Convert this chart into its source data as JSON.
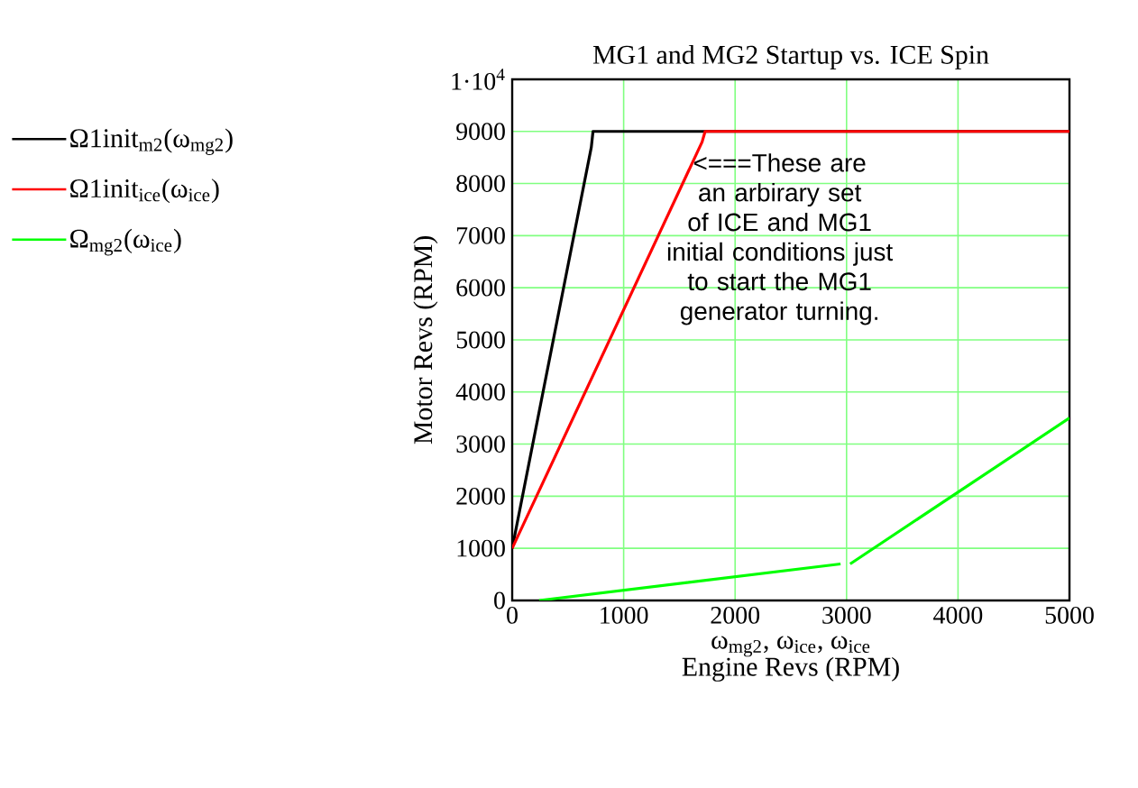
{
  "chart_data": {
    "type": "line",
    "title": "MG1 and MG2 Startup vs. ICE Spin",
    "xlabel": "Engine Revs (RPM)",
    "ylabel": "Motor Revs (RPM)",
    "annotations": [
      "<===These are an arbirary set of ICE and MG1 initial conditions  just to start the MG1 generator turning.",
      "ω$_{mg2}$, ω$_{ice}$, ω$_{ice}$"
    ],
    "series": [
      {
        "name": "Ω1init$_{m2}$(ω$_{mg2}$)",
        "color": "#000000",
        "x": [
          0,
          710,
          725,
          5000
        ],
        "values": [
          1000,
          8700,
          9000,
          9000
        ]
      },
      {
        "name": "Ω1init$_{ice}$(ω$_{ice}$)",
        "color": "#ff0000",
        "x": [
          0,
          1704,
          1731,
          5000
        ],
        "values": [
          1000,
          8800,
          9000,
          9000
        ]
      },
      {
        "name": "Ω$_{mg2}$(ω$_{ice}$)",
        "color": "#00ff00",
        "x": [
          242,
          2946,
          2990,
          3032,
          5000
        ],
        "values": [
          0,
          700,
          null,
          700,
          3500
        ]
      }
    ],
    "xlim": [
      0,
      5000
    ],
    "ylim": [
      0,
      10000
    ],
    "xticks": [
      0,
      1000,
      2000,
      3000,
      4000,
      5000
    ],
    "yticks": [
      0,
      1000,
      2000,
      3000,
      4000,
      5000,
      6000,
      7000,
      8000,
      9000,
      {
        "value": 10000,
        "label": "1·10$^{4}$"
      }
    ],
    "grid": true,
    "legend": "left",
    "marker": "none",
    "line_style": "solid"
  }
}
